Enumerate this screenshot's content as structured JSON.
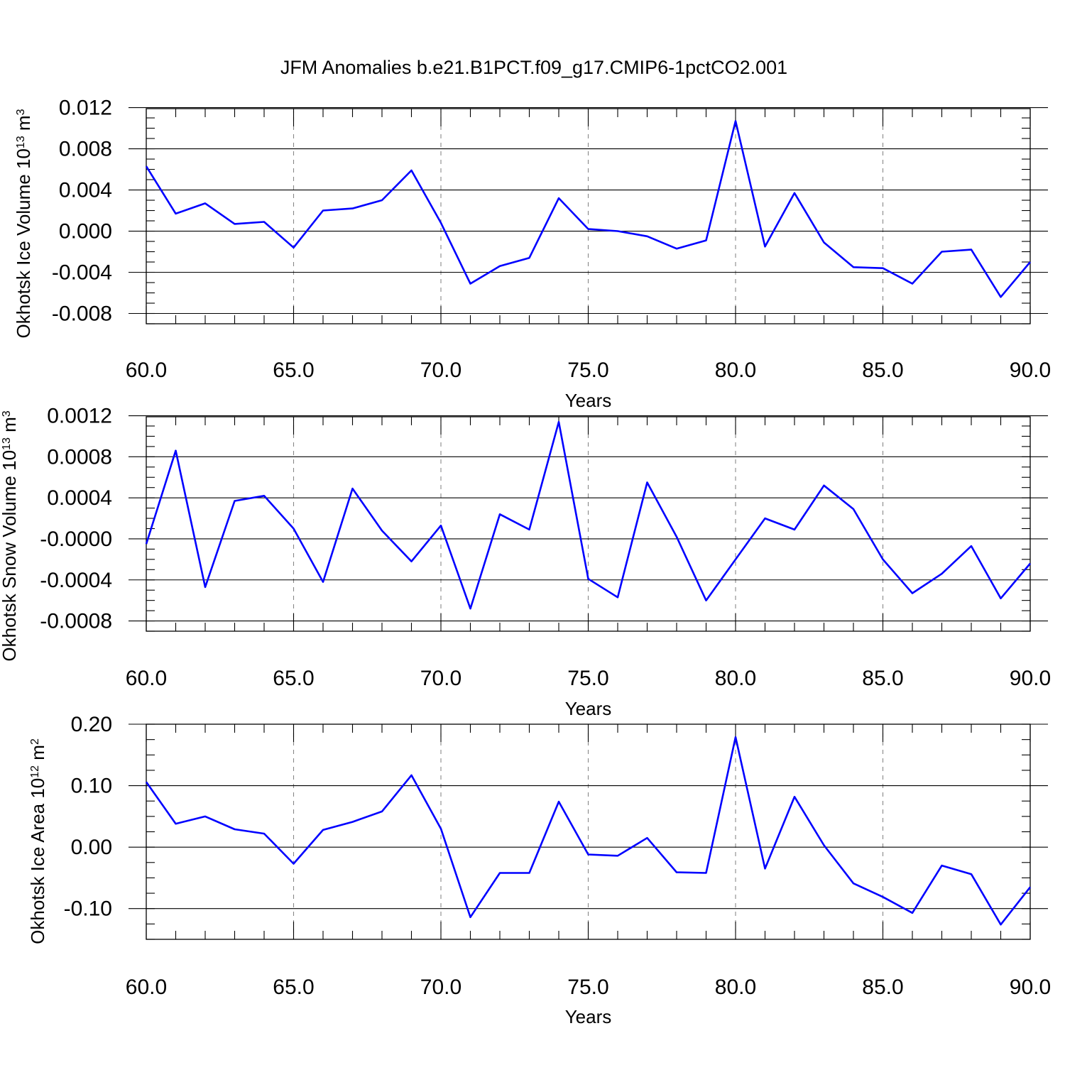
{
  "title": "JFM Anomalies b.e21.B1PCT.f09_g17.CMIP6-1pctCO2.001",
  "colors": {
    "series": "#0000ff",
    "grid": "#888888",
    "axis": "#000000"
  },
  "chart_data": [
    {
      "type": "line",
      "xlabel": "Years",
      "ylabel_main": "Okhotsk Ice Volume 10",
      "ylabel_exp": "13",
      "ylabel_unit": " m",
      "ylabel_unit_exp": "3",
      "xlim": [
        60,
        90
      ],
      "ylim": [
        -0.009,
        0.0119
      ],
      "grid": "vertical dashed at major x ticks",
      "xticks": [
        60,
        65,
        70,
        75,
        80,
        85,
        90
      ],
      "xtick_labels": [
        "60.0",
        "65.0",
        "70.0",
        "75.0",
        "80.0",
        "85.0",
        "90.0"
      ],
      "yticks": [
        -0.008,
        -0.004,
        0,
        0.004,
        0.008,
        0.012
      ],
      "ytick_labels": [
        "-0.008",
        "-0.004",
        "0.000",
        "0.004",
        "0.008",
        "0.012"
      ],
      "x": [
        60,
        61,
        62,
        63,
        64,
        65,
        66,
        67,
        68,
        69,
        70,
        71,
        72,
        73,
        74,
        75,
        76,
        77,
        78,
        79,
        80,
        81,
        82,
        83,
        84,
        85,
        86,
        87,
        88,
        89,
        90
      ],
      "values": [
        0.0063,
        0.0017,
        0.0027,
        0.0007,
        0.0009,
        -0.0016,
        0.002,
        0.0022,
        0.003,
        0.0059,
        0.0008,
        -0.0051,
        -0.0034,
        -0.0026,
        0.0032,
        0.0002,
        0.0,
        -0.0005,
        -0.0017,
        -0.0009,
        0.0107,
        -0.0015,
        0.0037,
        -0.0011,
        -0.0035,
        -0.0036,
        -0.0051,
        -0.002,
        -0.0018,
        -0.0064,
        -0.003
      ]
    },
    {
      "type": "line",
      "xlabel": "Years",
      "ylabel_main": "Okhotsk Snow Volume 10",
      "ylabel_exp": "13",
      "ylabel_unit": " m",
      "ylabel_unit_exp": "3",
      "xlim": [
        60,
        90
      ],
      "ylim": [
        -0.0009,
        0.00119
      ],
      "grid": "vertical dashed at major x ticks",
      "xticks": [
        60,
        65,
        70,
        75,
        80,
        85,
        90
      ],
      "xtick_labels": [
        "60.0",
        "65.0",
        "70.0",
        "75.0",
        "80.0",
        "85.0",
        "90.0"
      ],
      "yticks": [
        -0.0008,
        -0.0004,
        0,
        0.0004,
        0.0008,
        0.0012
      ],
      "ytick_labels": [
        "-0.0008",
        "-0.0004",
        "-0.0000",
        "0.0004",
        "0.0008",
        "0.0012"
      ],
      "x": [
        60,
        61,
        62,
        63,
        64,
        65,
        66,
        67,
        68,
        69,
        70,
        71,
        72,
        73,
        74,
        75,
        76,
        77,
        78,
        79,
        80,
        81,
        82,
        83,
        84,
        85,
        86,
        87,
        88,
        89,
        90
      ],
      "values": [
        -5e-05,
        0.00086,
        -0.00047,
        0.00037,
        0.00042,
        0.0001,
        -0.00042,
        0.00049,
        8e-05,
        -0.00022,
        0.00013,
        -0.00068,
        0.00024,
        9e-05,
        0.00114,
        -0.00039,
        -0.00057,
        0.00055,
        2e-05,
        -0.0006,
        -0.0002,
        0.0002,
        9e-05,
        0.00052,
        0.00029,
        -0.0002,
        -0.00053,
        -0.00034,
        -7e-05,
        -0.00058,
        -0.00024
      ]
    },
    {
      "type": "line",
      "xlabel": "Years",
      "ylabel_main": "Okhotsk Ice Area 10",
      "ylabel_exp": "12",
      "ylabel_unit": " m",
      "ylabel_unit_exp": "2",
      "xlim": [
        60,
        90
      ],
      "ylim": [
        -0.15,
        0.2
      ],
      "grid": "vertical dashed at major x ticks",
      "xticks": [
        60,
        65,
        70,
        75,
        80,
        85,
        90
      ],
      "xtick_labels": [
        "60.0",
        "65.0",
        "70.0",
        "75.0",
        "80.0",
        "85.0",
        "90.0"
      ],
      "yticks": [
        -0.1,
        0,
        0.1,
        0.2
      ],
      "ytick_labels": [
        "-0.10",
        "0.00",
        "0.10",
        "0.20"
      ],
      "x": [
        60,
        61,
        62,
        63,
        64,
        65,
        66,
        67,
        68,
        69,
        70,
        71,
        72,
        73,
        74,
        75,
        76,
        77,
        78,
        79,
        80,
        81,
        82,
        83,
        84,
        85,
        86,
        87,
        88,
        89,
        90
      ],
      "values": [
        0.106,
        0.038,
        0.05,
        0.029,
        0.022,
        -0.027,
        0.028,
        0.041,
        0.058,
        0.117,
        0.03,
        -0.114,
        -0.042,
        -0.042,
        0.074,
        -0.012,
        -0.014,
        0.015,
        -0.041,
        -0.042,
        0.179,
        -0.035,
        0.082,
        0.003,
        -0.059,
        -0.081,
        -0.107,
        -0.03,
        -0.044,
        -0.126,
        -0.065
      ]
    }
  ]
}
